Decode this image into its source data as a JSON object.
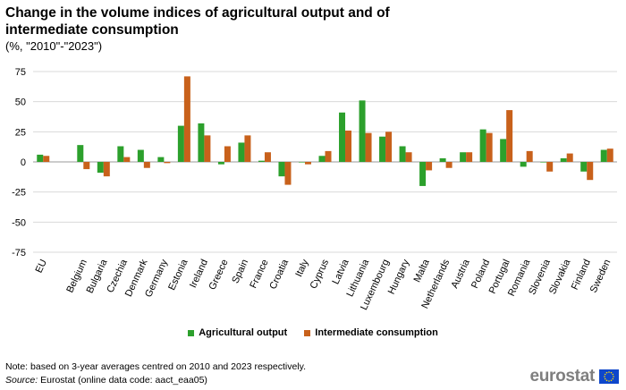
{
  "title": "Change in the volume indices of agricultural output and of intermediate consumption",
  "subtitle": "(%, \"2010\"-\"2023\")",
  "note": "Note: based on 3-year averages centred on 2010 and 2023 respectively.",
  "source_label": "Source:",
  "source_text": " Eurostat (online data code: aact_eaa05)",
  "logo_text": "eurostat",
  "chart_data": {
    "type": "bar",
    "ylim": [
      -75,
      75
    ],
    "yticks": [
      75,
      50,
      25,
      0,
      -25,
      -50,
      -75
    ],
    "grid": true,
    "legend_position": "bottom",
    "categories": [
      "EU",
      "",
      "Belgium",
      "Bulgaria",
      "Czechia",
      "Denmark",
      "Germany",
      "Estonia",
      "Ireland",
      "Greece",
      "Spain",
      "France",
      "Croatia",
      "Italy",
      "Cyprus",
      "Latvia",
      "Lithuania",
      "Luxembourg",
      "Hungary",
      "Malta",
      "Netherlands",
      "Austria",
      "Poland",
      "Portugal",
      "Romania",
      "Slovenia",
      "Slovakia",
      "Finland",
      "Sweden"
    ],
    "series": [
      {
        "name": "Agricultural output",
        "color": "#2ca02c",
        "values": [
          6,
          null,
          14,
          -9,
          13,
          10,
          4,
          30,
          32,
          -2,
          16,
          1,
          -12,
          0,
          5,
          41,
          51,
          21,
          13,
          -20,
          3,
          8,
          27,
          19,
          -4,
          0,
          3,
          -8,
          10
        ]
      },
      {
        "name": "Intermediate consumption",
        "color": "#c8611b",
        "values": [
          5,
          null,
          -6,
          -12,
          4,
          -5,
          -1,
          71,
          22,
          13,
          22,
          8,
          -19,
          -2,
          9,
          26,
          24,
          25,
          8,
          -7,
          -5,
          8,
          24,
          43,
          9,
          -8,
          7,
          -15,
          11
        ]
      }
    ]
  }
}
